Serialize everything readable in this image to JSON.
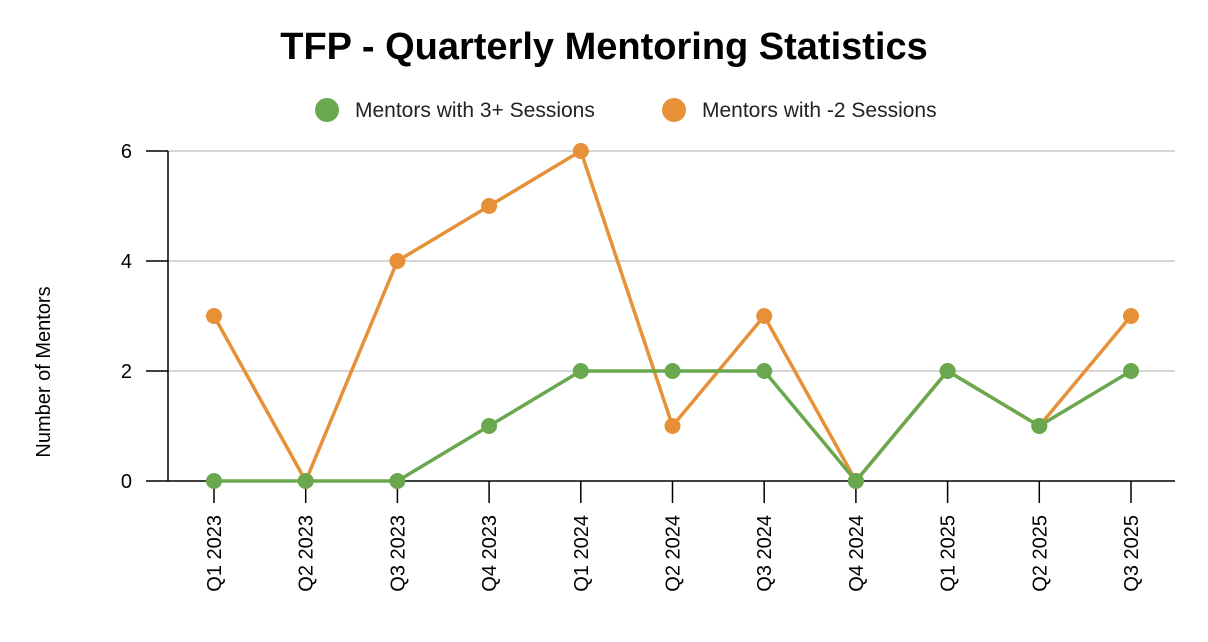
{
  "chart_data": {
    "type": "line",
    "title": "TFP - Quarterly Mentoring Statistics",
    "xlabel": "",
    "ylabel": "Number of Mentors",
    "ylim": [
      0,
      6
    ],
    "yticks": [
      0,
      2,
      4,
      6
    ],
    "grid": true,
    "legend_position": "top",
    "categories": [
      "Q1 2023",
      "Q2 2023",
      "Q3 2023",
      "Q4 2023",
      "Q1 2024",
      "Q2 2024",
      "Q3 2024",
      "Q4 2024",
      "Q1 2025",
      "Q2 2025",
      "Q3 2025"
    ],
    "series": [
      {
        "name": "Mentors with 3+ Sessions",
        "color": "#6aa84f",
        "values": [
          0,
          0,
          0,
          1,
          2,
          2,
          2,
          0,
          2,
          1,
          2
        ]
      },
      {
        "name": "Mentors with -2 Sessions",
        "color": "#e69138",
        "values": [
          3,
          0,
          4,
          5,
          6,
          1,
          3,
          0,
          2,
          1,
          3
        ]
      }
    ]
  }
}
